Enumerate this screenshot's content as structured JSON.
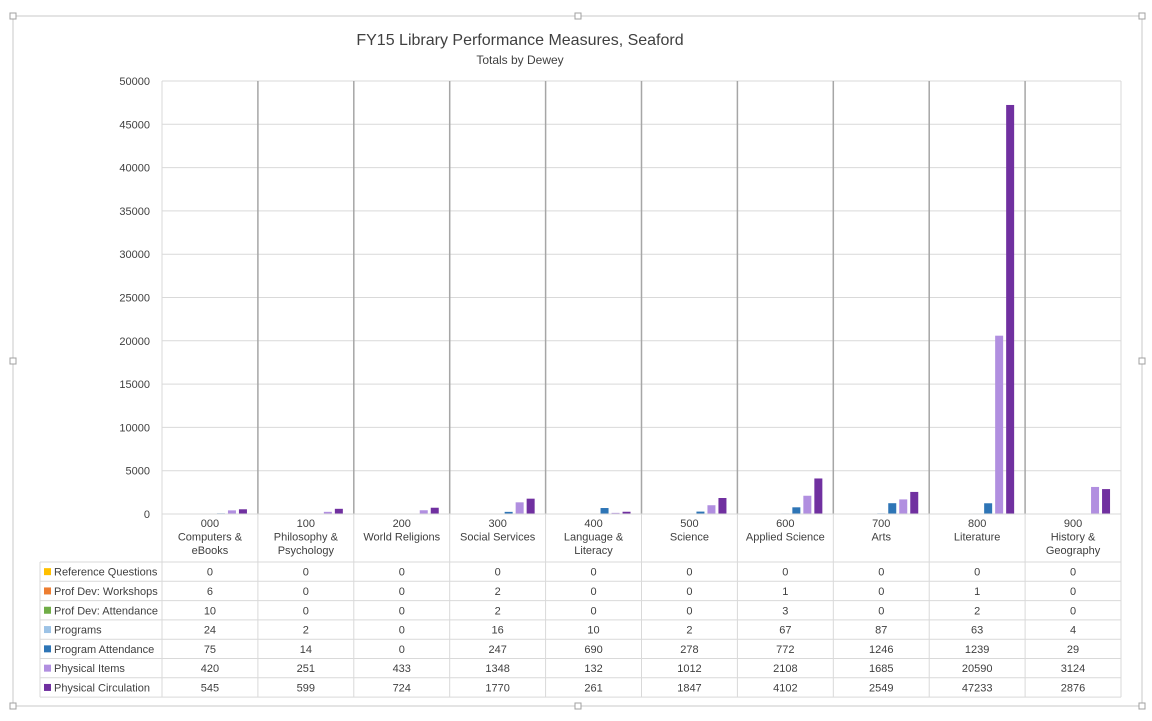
{
  "chart_data": {
    "type": "bar",
    "title": "FY15 Library Performance Measures, Seaford",
    "subtitle": "Totals by Dewey",
    "ylim": [
      0,
      50000
    ],
    "yticks": [
      0,
      5000,
      10000,
      15000,
      20000,
      25000,
      30000,
      35000,
      40000,
      45000,
      50000
    ],
    "grid": true,
    "legend": "data-table-left",
    "categories": [
      [
        "000",
        "Computers &",
        "eBooks"
      ],
      [
        "100",
        "Philosophy &",
        "Psychology"
      ],
      [
        "200",
        "World Religions"
      ],
      [
        "300",
        "Social Services"
      ],
      [
        "400",
        "Language &",
        "Literacy"
      ],
      [
        "500",
        "Science"
      ],
      [
        "600",
        "Applied Science"
      ],
      [
        "700",
        "Arts"
      ],
      [
        "800",
        "Literature"
      ],
      [
        "900",
        "History &",
        "Geography"
      ]
    ],
    "series": [
      {
        "name": "Reference Questions",
        "color": "#FFC000",
        "values": [
          0,
          0,
          0,
          0,
          0,
          0,
          0,
          0,
          0,
          0
        ]
      },
      {
        "name": "Prof Dev: Workshops",
        "color": "#ED7D31",
        "values": [
          6,
          0,
          0,
          2,
          0,
          0,
          1,
          0,
          1,
          0
        ]
      },
      {
        "name": "Prof Dev: Attendance",
        "color": "#70AD47",
        "values": [
          10,
          0,
          0,
          2,
          0,
          0,
          3,
          0,
          2,
          0
        ]
      },
      {
        "name": "Programs",
        "color": "#9DC3E6",
        "values": [
          24,
          2,
          0,
          16,
          10,
          2,
          67,
          87,
          63,
          4
        ]
      },
      {
        "name": "Program Attendance",
        "color": "#2E75B6",
        "values": [
          75,
          14,
          0,
          247,
          690,
          278,
          772,
          1246,
          1239,
          29
        ]
      },
      {
        "name": "Physical Items",
        "color": "#B18FE0",
        "values": [
          420,
          251,
          433,
          1348,
          132,
          1012,
          2108,
          1685,
          20590,
          3124
        ]
      },
      {
        "name": "Physical Circulation",
        "color": "#7030A0",
        "values": [
          545,
          599,
          724,
          1770,
          261,
          1847,
          4102,
          2549,
          47233,
          2876
        ]
      }
    ]
  }
}
